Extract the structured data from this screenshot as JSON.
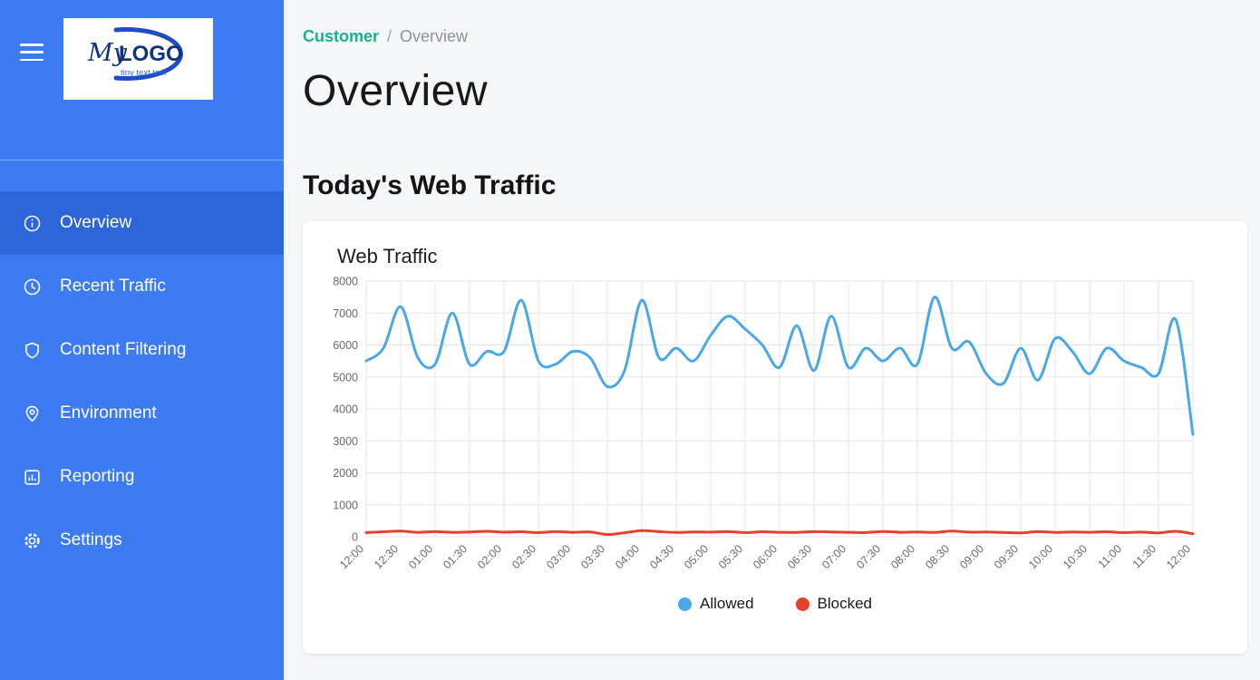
{
  "colors": {
    "sidebar_bg": "#3c7bf2",
    "sidebar_active_bg": "#2d66da",
    "breadcrumb_link": "#16b38e",
    "allowed_line": "#4aa7e8",
    "blocked_line": "#e2432a"
  },
  "sidebar": {
    "logo": {
      "name_italic": "My",
      "name_bold": "LOGO",
      "tagline": "tiny text test"
    },
    "items": [
      {
        "label": "Overview",
        "icon": "info-icon",
        "active": true
      },
      {
        "label": "Recent Traffic",
        "icon": "clock-icon",
        "active": false
      },
      {
        "label": "Content Filtering",
        "icon": "shield-icon",
        "active": false
      },
      {
        "label": "Environment",
        "icon": "location-pin-icon",
        "active": false
      },
      {
        "label": "Reporting",
        "icon": "bar-chart-icon",
        "active": false
      },
      {
        "label": "Settings",
        "icon": "gear-icon",
        "active": false
      }
    ]
  },
  "breadcrumb": {
    "parent": "Customer",
    "separator": "/",
    "current": "Overview"
  },
  "page": {
    "title": "Overview",
    "section_title": "Today's Web Traffic"
  },
  "card": {
    "title": "Web Traffic"
  },
  "chart_data": {
    "type": "line",
    "title": "Web Traffic",
    "x_tick_labels": [
      "12:00",
      "12:30",
      "01:00",
      "01:30",
      "02:00",
      "02:30",
      "03:00",
      "03:30",
      "04:00",
      "04:30",
      "05:00",
      "05:30",
      "06:00",
      "06:30",
      "07:00",
      "07:30",
      "08:00",
      "08:30",
      "09:00",
      "09:30",
      "10:00",
      "10:30",
      "11:00",
      "11:30",
      "12:00"
    ],
    "label_every": 2,
    "xlabel": "",
    "ylabel": "",
    "ylim": [
      0,
      8000
    ],
    "y_tick_step": 1000,
    "grid": true,
    "legend_position": "bottom",
    "series": [
      {
        "name": "Allowed",
        "color": "#4aa7e8",
        "values": [
          5500,
          5900,
          7200,
          5600,
          5400,
          7000,
          5400,
          5800,
          5800,
          7400,
          5500,
          5400,
          5800,
          5600,
          4700,
          5200,
          7400,
          5600,
          5900,
          5500,
          6300,
          6900,
          6500,
          6000,
          5300,
          6600,
          5200,
          6900,
          5300,
          5900,
          5500,
          5900,
          5400,
          7500,
          5900,
          6100,
          5100,
          4800,
          5900,
          4900,
          6200,
          5800,
          5100,
          5900,
          5500,
          5300,
          5100,
          6800,
          3200
        ]
      },
      {
        "name": "Blocked",
        "color": "#e2432a",
        "values": [
          130,
          155,
          175,
          140,
          160,
          135,
          150,
          170,
          145,
          155,
          130,
          160,
          140,
          150,
          70,
          125,
          190,
          160,
          135,
          150,
          145,
          160,
          130,
          155,
          140,
          135,
          160,
          150,
          140,
          130,
          165,
          140,
          150,
          135,
          180,
          145,
          150,
          135,
          120,
          160,
          135,
          150,
          140,
          155,
          130,
          145,
          120,
          170,
          95
        ]
      }
    ]
  }
}
